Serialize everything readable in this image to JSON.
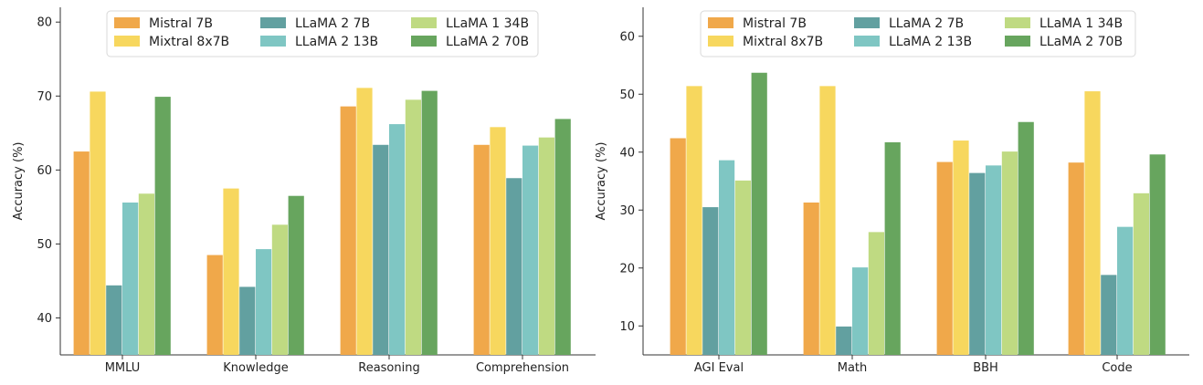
{
  "series_meta": [
    {
      "name": "Mistral 7B",
      "color": "#F0A84A"
    },
    {
      "name": "Mixtral 8x7B",
      "color": "#F7D75E"
    },
    {
      "name": "LLaMA 2 7B",
      "color": "#62A0A0"
    },
    {
      "name": "LLaMA 2 13B",
      "color": "#7FC6C3"
    },
    {
      "name": "LLaMA 1 34B",
      "color": "#BFDA82"
    },
    {
      "name": "LLaMA 2 70B",
      "color": "#67A55E"
    }
  ],
  "chart_data": [
    {
      "type": "bar",
      "categories": [
        "MMLU",
        "Knowledge",
        "Reasoning",
        "Comprehension"
      ],
      "ylabel": "Accuracy (%)",
      "ylim": [
        35,
        82
      ],
      "yticks": [
        40,
        50,
        60,
        70,
        80
      ],
      "legend_position": "top-center",
      "grid": false,
      "series": [
        {
          "name": "Mistral 7B",
          "values": [
            62.5,
            48.5,
            68.6,
            63.4
          ]
        },
        {
          "name": "Mixtral 8x7B",
          "values": [
            70.6,
            57.5,
            71.1,
            65.8
          ]
        },
        {
          "name": "LLaMA 2 7B",
          "values": [
            44.4,
            44.2,
            63.4,
            58.9
          ]
        },
        {
          "name": "LLaMA 2 13B",
          "values": [
            55.6,
            49.3,
            66.2,
            63.3
          ]
        },
        {
          "name": "LLaMA 1 34B",
          "values": [
            56.8,
            52.6,
            69.5,
            64.4
          ]
        },
        {
          "name": "LLaMA 2 70B",
          "values": [
            69.9,
            56.5,
            70.7,
            66.9
          ]
        }
      ]
    },
    {
      "type": "bar",
      "categories": [
        "AGI Eval",
        "Math",
        "BBH",
        "Code"
      ],
      "ylabel": "Accuracy (%)",
      "ylim": [
        5,
        65
      ],
      "yticks": [
        10,
        20,
        30,
        40,
        50,
        60
      ],
      "legend_position": "top-center",
      "grid": false,
      "series": [
        {
          "name": "Mistral 7B",
          "values": [
            42.4,
            31.3,
            38.3,
            38.2
          ]
        },
        {
          "name": "Mixtral 8x7B",
          "values": [
            51.4,
            51.4,
            42.0,
            50.5
          ]
        },
        {
          "name": "LLaMA 2 7B",
          "values": [
            30.5,
            9.9,
            36.4,
            18.8
          ]
        },
        {
          "name": "LLaMA 2 13B",
          "values": [
            38.6,
            20.1,
            37.7,
            27.1
          ]
        },
        {
          "name": "LLaMA 1 34B",
          "values": [
            35.1,
            26.2,
            40.1,
            32.9
          ]
        },
        {
          "name": "LLaMA 2 70B",
          "values": [
            53.7,
            41.7,
            45.2,
            39.6
          ]
        }
      ]
    }
  ]
}
